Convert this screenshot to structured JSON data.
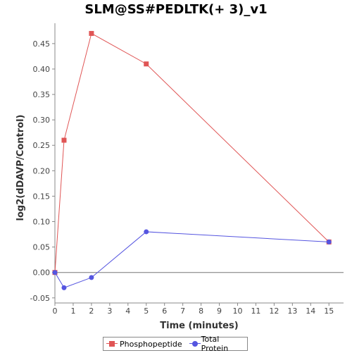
{
  "chart_data": {
    "type": "line",
    "title": "SLM@SS#PEDLTK(+ 3)_v1",
    "xlabel": "Time (minutes)",
    "ylabel": "log2(dDAVP/Control)",
    "xlim": [
      0,
      15.8
    ],
    "ylim": [
      -0.06,
      0.49
    ],
    "xticks": [
      0,
      1,
      2,
      3,
      4,
      5,
      6,
      7,
      8,
      9,
      10,
      11,
      12,
      13,
      14,
      15
    ],
    "yticks": [
      -0.05,
      0.0,
      0.05,
      0.1,
      0.15,
      0.2,
      0.25,
      0.3,
      0.35,
      0.4,
      0.45
    ],
    "ytick_labels": [
      "-0.05",
      "0.00",
      "0.05",
      "0.10",
      "0.15",
      "0.20",
      "0.25",
      "0.30",
      "0.35",
      "0.40",
      "0.45"
    ],
    "grid": false,
    "zero_line": true,
    "legend_position": "bottom",
    "series": [
      {
        "name": "Phosphopeptide",
        "color": "#e05555",
        "marker": "square",
        "x": [
          0,
          0.5,
          2,
          5,
          15
        ],
        "y": [
          0.0,
          0.26,
          0.47,
          0.41,
          0.06
        ]
      },
      {
        "name": "Total Protein",
        "color": "#5555e0",
        "marker": "circle",
        "x": [
          0,
          0.5,
          2,
          5,
          15
        ],
        "y": [
          0.0,
          -0.03,
          -0.01,
          0.08,
          0.06
        ]
      }
    ]
  }
}
